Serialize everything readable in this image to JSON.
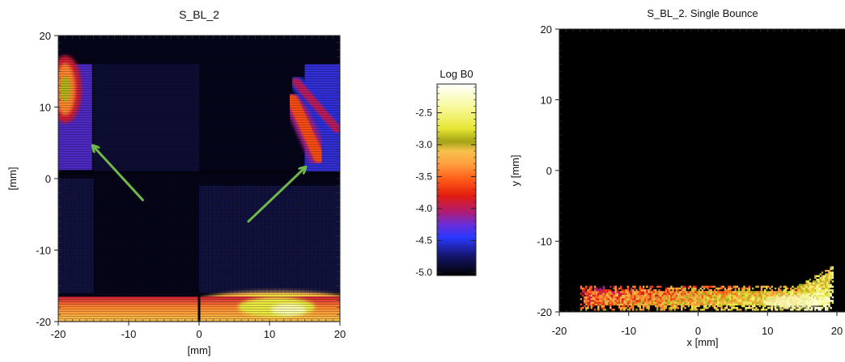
{
  "chart_data": [
    {
      "type": "heatmap",
      "title": "S_BL_2",
      "xlabel": "[mm]",
      "ylabel": "[mm]",
      "xlim": [
        -20,
        20
      ],
      "ylim": [
        -20,
        20
      ],
      "xticks": [
        -20,
        -10,
        0,
        10,
        20
      ],
      "yticks": [
        -20,
        -10,
        0,
        10,
        20
      ],
      "background": "#05051a",
      "annotations": [
        {
          "type": "arrow",
          "from": [
            -8,
            -3
          ],
          "to": [
            -15,
            4.5
          ],
          "color": "#6fb84a"
        },
        {
          "type": "arrow",
          "from": [
            7,
            -6
          ],
          "to": [
            15,
            1.5
          ],
          "color": "#6fb84a"
        }
      ],
      "regions": [
        {
          "kind": "band",
          "x": [
            -20,
            -15.2
          ],
          "y": [
            1,
            16
          ],
          "value": -4.3
        },
        {
          "kind": "hot",
          "x": -19,
          "y": 12.5,
          "sx": 0.9,
          "sy": 2.8,
          "value": -3.4
        },
        {
          "kind": "strip",
          "x": [
            -20,
            20
          ],
          "y": [
            0.5,
            1.2
          ],
          "value": -5.0
        },
        {
          "kind": "band",
          "x": [
            15,
            20
          ],
          "y": [
            1,
            16
          ],
          "value": -4.4
        },
        {
          "kind": "streak",
          "from": [
            13.3,
            11
          ],
          "to": [
            17,
            3
          ],
          "width": 1.6,
          "value": -3.6
        },
        {
          "kind": "streak",
          "from": [
            13.8,
            13.5
          ],
          "to": [
            19.5,
            7
          ],
          "width": 1.2,
          "value": -4.0
        },
        {
          "kind": "band",
          "x": [
            -20,
            20
          ],
          "y": [
            -20,
            -16.5
          ],
          "value": -3.5
        },
        {
          "kind": "hot",
          "x": 11,
          "y": -18,
          "sx": 5,
          "sy": 1.4,
          "value": -2.7
        }
      ]
    },
    {
      "type": "heatmap",
      "title": "S_BL_2. Single Bounce",
      "xlabel": "x [mm]",
      "ylabel": "y [mm]",
      "xlim": [
        -20,
        20
      ],
      "ylim": [
        -20,
        20
      ],
      "xticks": [
        -20,
        -10,
        0,
        10,
        20
      ],
      "yticks": [
        -20,
        -10,
        0,
        10,
        20
      ],
      "background": "#000000",
      "regions": [
        {
          "kind": "footprint",
          "x": [
            -17,
            19.5
          ],
          "y": [
            -19.8,
            -13.5
          ],
          "value_range": [
            -3.8,
            -2.2
          ]
        }
      ]
    }
  ],
  "colorbar": {
    "title": "Log B0",
    "range": [
      -5.05,
      -2.05
    ],
    "ticks": [
      -2.5,
      -3.0,
      -3.5,
      -4.0,
      -4.5,
      -5.0
    ],
    "tick_labels": [
      "-2.5",
      "-3.0",
      "-3.5",
      "-4.0",
      "-4.5",
      "-5.0"
    ],
    "stops": [
      {
        "v": -5.05,
        "color": "#000000"
      },
      {
        "v": -4.75,
        "color": "#15156b"
      },
      {
        "v": -4.45,
        "color": "#2a38ff"
      },
      {
        "v": -4.25,
        "color": "#6a2ed8"
      },
      {
        "v": -4.05,
        "color": "#b01c70"
      },
      {
        "v": -3.8,
        "color": "#e11c10"
      },
      {
        "v": -3.55,
        "color": "#ff5a16"
      },
      {
        "v": -3.3,
        "color": "#ffa040"
      },
      {
        "v": -3.1,
        "color": "#f6c24a"
      },
      {
        "v": -2.95,
        "color": "#a4a318"
      },
      {
        "v": -2.75,
        "color": "#e7e634"
      },
      {
        "v": -2.4,
        "color": "#f9f9a0"
      },
      {
        "v": -2.05,
        "color": "#ffffff"
      }
    ]
  }
}
